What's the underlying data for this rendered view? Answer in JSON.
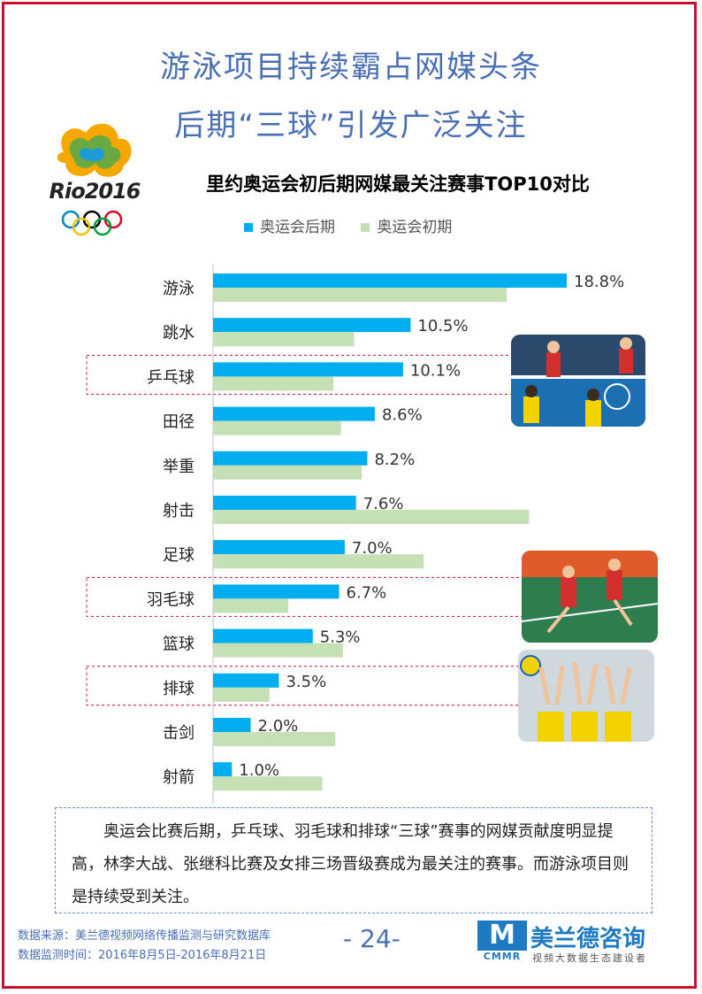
{
  "header": {
    "title_line1": "游泳项目持续霸占网媒头条",
    "title_line2": "后期“三球”引发广泛关注"
  },
  "logo": {
    "text": "Rio2016"
  },
  "chart_data": {
    "type": "bar",
    "orientation": "horizontal",
    "title": "里约奥运会初后期网媒最关注赛事TOP10对比",
    "categories": [
      "游泳",
      "跳水",
      "乒乓球",
      "田径",
      "举重",
      "射击",
      "足球",
      "羽毛球",
      "篮球",
      "排球",
      "击剑",
      "射箭"
    ],
    "highlighted_categories": [
      "乒乓球",
      "羽毛球",
      "排球"
    ],
    "series": [
      {
        "name": "奥运会后期",
        "color": "#00aeef",
        "values": [
          18.8,
          10.5,
          10.1,
          8.6,
          8.2,
          7.6,
          7.0,
          6.7,
          5.3,
          3.5,
          2.0,
          1.0
        ],
        "labels": [
          "18.8%",
          "10.5%",
          "10.1%",
          "8.6%",
          "8.2%",
          "7.6%",
          "7.0%",
          "6.7%",
          "5.3%",
          "3.5%",
          "2.0%",
          "1.0%"
        ]
      },
      {
        "name": "奥运会初期",
        "color": "#c5e0b4",
        "values": [
          15.6,
          7.5,
          6.4,
          6.8,
          7.9,
          16.8,
          11.2,
          4.0,
          6.9,
          3.0,
          6.5,
          5.8
        ]
      }
    ],
    "xlim": [
      0,
      20
    ],
    "legend_position": "top",
    "grid": false
  },
  "summary": {
    "text": "奥运会比赛后期，乒乓球、羽毛球和排球“三球”赛事的网媒贡献度明显提高，林李大战、张继科比赛及女排三场晋级赛成为最关注的赛事。而游泳项目则是持续受到关注。"
  },
  "footer": {
    "source": "数据来源：美兰德视频网络传播监测与研究数据库",
    "period": "数据监测时间：2016年8月5日-2016年8月21日",
    "page": "- 24-",
    "brand_mark": "M",
    "brand_abbr": "CMMR",
    "brand_name": "美兰德咨询",
    "brand_tagline": "视频大数据生态建设者"
  },
  "colors": {
    "accent": "#4a6fb5",
    "border": "#c8102e",
    "brand": "#1f7ac4"
  }
}
